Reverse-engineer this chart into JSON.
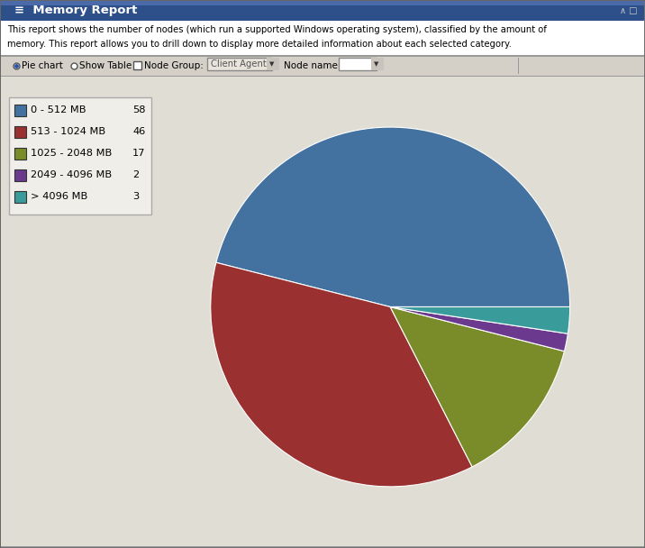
{
  "title": "Memory Report",
  "description_line1": "This report shows the number of nodes (which run a supported Windows operating system), classified by the amount of",
  "description_line2": "memory. This report allows you to drill down to display more detailed information about each selected category.",
  "slices": [
    58,
    46,
    17,
    2,
    3
  ],
  "labels": [
    "0 - 512 MB",
    "513 - 1024 MB",
    "1025 - 2048 MB",
    "2049 - 4096 MB",
    "> 4096 MB"
  ],
  "colors": [
    "#4472A0",
    "#9B3030",
    "#7A8C2A",
    "#6B3A8E",
    "#3A9B9B"
  ],
  "pie_startangle": 90,
  "title_bar_color_top": "#3A5A9A",
  "title_bar_color_bot": "#1A3A6A",
  "title_text_color": "#FFFFFF",
  "bg_color": "#D4D0C8",
  "content_bg_color": "#E0DDD5",
  "desc_bg_color": "#F0EEE8",
  "toolbar_bg": "#C8C4BC",
  "legend_bg": "#F0EEE8",
  "border_color": "#808080"
}
